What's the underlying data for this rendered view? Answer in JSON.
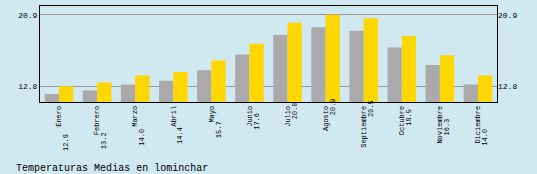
{
  "chart_data": {
    "type": "bar",
    "title": "Temperaturas Medias en lominchar",
    "categories": [
      "Enero",
      "Febrero",
      "Marzo",
      "Abril",
      "Mayo",
      "Junio",
      "Julio",
      "Agosto",
      "Septiembre",
      "Octubre",
      "Noviembre",
      "Diciembre"
    ],
    "series": [
      {
        "color": "#AAAAAA",
        "values": [
          11.9,
          12.3,
          13.0,
          13.4,
          14.6,
          16.4,
          18.6,
          19.5,
          19.1,
          17.2,
          15.2,
          13.0
        ]
      },
      {
        "color": "#FFD700",
        "values": [
          12.8,
          13.2,
          14.0,
          14.4,
          15.7,
          17.6,
          20.0,
          20.9,
          20.5,
          18.5,
          16.3,
          14.0
        ],
        "data_labels": true,
        "value_labels": [
          "12.8",
          "13.2",
          "14.0",
          "14.4",
          "15.7",
          "17.6",
          "20.0",
          "20.9",
          "20.5",
          "18.5",
          "16.3",
          "14.0"
        ]
      }
    ],
    "ylim": [
      11.0,
      21.9
    ],
    "yticks": [
      12.8,
      20.9
    ],
    "y2lim": [
      11.0,
      21.9
    ],
    "y2ticks": [
      12.8,
      20.9
    ],
    "grid": true
  }
}
